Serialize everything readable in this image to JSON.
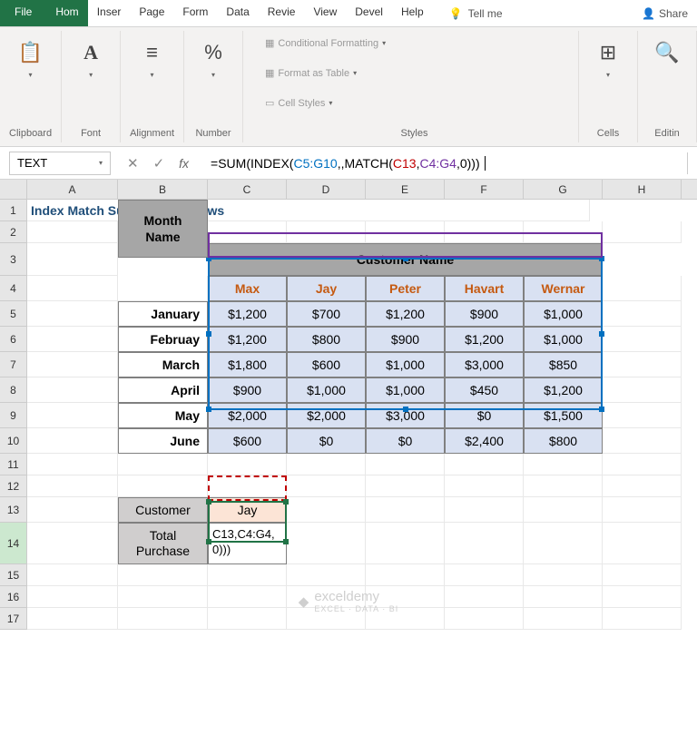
{
  "tabs": {
    "file": "File",
    "home": "Hom",
    "insert": "Inser",
    "page": "Page",
    "formulas": "Form",
    "data": "Data",
    "review": "Revie",
    "view": "View",
    "developer": "Devel",
    "help": "Help",
    "tellme": "Tell me",
    "share": "Share"
  },
  "ribbon": {
    "clipboard": "Clipboard",
    "font": "Font",
    "alignment": "Alignment",
    "number": "Number",
    "styles": "Styles",
    "cells": "Cells",
    "editing": "Editin",
    "cf": "Conditional Formatting",
    "fat": "Format as Table",
    "cs": "Cell Styles"
  },
  "nameBox": "TEXT",
  "formula": {
    "prefix": "=SUM(INDEX(",
    "r1": "C5:G10",
    "m1": ",,MATCH(",
    "r2": "C13",
    "c": ",",
    "r3": "C4:G4",
    "suffix": ",0)))"
  },
  "columns": [
    "A",
    "B",
    "C",
    "D",
    "E",
    "F",
    "G",
    "H"
  ],
  "title": "Index Match Sum Multiple Rows",
  "table": {
    "monthHeader": "Month Name",
    "customerHeader": "Customer Name",
    "customers": [
      "Max",
      "Jay",
      "Peter",
      "Havart",
      "Wernar"
    ],
    "months": [
      "January",
      "Februay",
      "March",
      "April",
      "May",
      "June"
    ],
    "data": [
      [
        "$1,200",
        "$700",
        "$1,200",
        "$900",
        "$1,000"
      ],
      [
        "$1,200",
        "$800",
        "$900",
        "$1,200",
        "$1,000"
      ],
      [
        "$1,800",
        "$600",
        "$1,000",
        "$3,000",
        "$850"
      ],
      [
        "$900",
        "$1,000",
        "$1,000",
        "$450",
        "$1,200"
      ],
      [
        "$2,000",
        "$2,000",
        "$3,000",
        "$0",
        "$1,500"
      ],
      [
        "$600",
        "$0",
        "$0",
        "$2,400",
        "$800"
      ]
    ]
  },
  "lookup": {
    "customerLabel": "Customer",
    "customerValue": "Jay",
    "totalLabel": "Total Purchase",
    "totalValue": "C13,C4:G4,0)))"
  },
  "watermark": {
    "brand": "exceldemy",
    "sub": "EXCEL · DATA · BI"
  },
  "colors": {
    "excelGreen": "#217346",
    "ribbonBg": "#f3f2f1",
    "headerGray": "#a6a6a6",
    "dataBlue": "#d9e1f2",
    "orangeText": "#c55a11",
    "titleBlue": "#1f4e79",
    "lookupGray": "#d0cece",
    "lookupPeach": "#fce4d6",
    "selBlue": "#0070c0",
    "selPurple": "#7030a0",
    "selRed": "#c00000",
    "selGreen": "#217346"
  }
}
